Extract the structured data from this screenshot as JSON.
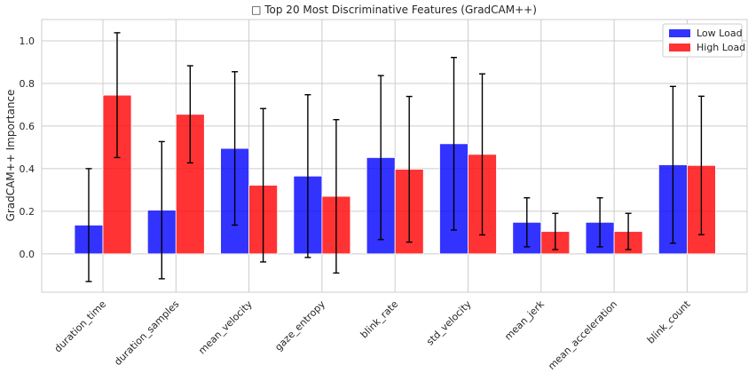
{
  "chart_data": {
    "type": "bar",
    "title": "□ Top 20 Most Discriminative Features (GradCAM++)",
    "xlabel": "",
    "ylabel": "GradCAM++ Importance",
    "ylim": [
      -0.18,
      1.1
    ],
    "yticks": [
      "0.0",
      "0.2",
      "0.4",
      "0.6",
      "0.8",
      "1.0"
    ],
    "grid": true,
    "legend": "top-right",
    "categories": [
      "duration_time",
      "duration_samples",
      "mean_velocity",
      "gaze_entropy",
      "blink_rate",
      "std_velocity",
      "mean_jerk",
      "mean_acceleration",
      "blink_count"
    ],
    "series": [
      {
        "name": "Low Load",
        "color": "#0000ff",
        "values": [
          0.135,
          0.205,
          0.495,
          0.365,
          0.452,
          0.517,
          0.148,
          0.148,
          0.418
        ],
        "errors": [
          0.265,
          0.322,
          0.36,
          0.382,
          0.385,
          0.405,
          0.115,
          0.115,
          0.368
        ]
      },
      {
        "name": "High Load",
        "color": "#ff0000",
        "values": [
          0.745,
          0.655,
          0.322,
          0.27,
          0.397,
          0.467,
          0.105,
          0.105,
          0.415
        ],
        "errors": [
          0.293,
          0.228,
          0.36,
          0.36,
          0.342,
          0.378,
          0.085,
          0.085,
          0.325
        ]
      }
    ]
  }
}
